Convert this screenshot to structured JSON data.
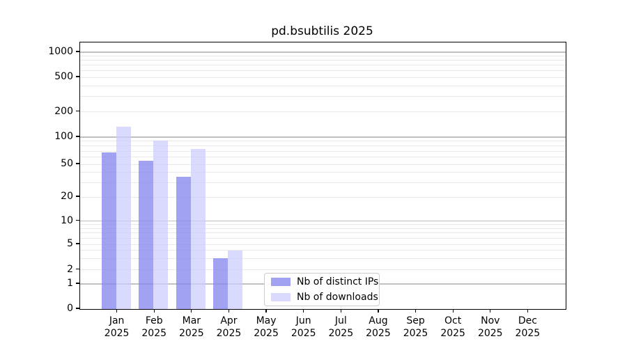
{
  "figure": {
    "title": "pd.bsubtilis 2025"
  },
  "chart_data": {
    "type": "bar",
    "title": "pd.bsubtilis 2025",
    "categories": [
      "Jan 2025",
      "Feb 2025",
      "Mar 2025",
      "Apr 2025",
      "May 2025",
      "Jun 2025",
      "Jul 2025",
      "Aug 2025",
      "Sep 2025",
      "Oct 2025",
      "Nov 2025",
      "Dec 2025"
    ],
    "month_labels": [
      "Jan",
      "Feb",
      "Mar",
      "Apr",
      "May",
      "Jun",
      "Jul",
      "Aug",
      "Sep",
      "Oct",
      "Nov",
      "Dec"
    ],
    "year_label": "2025",
    "series": [
      {
        "name": "Nb of distinct IPs",
        "color": "#8888ee",
        "fill": "rgba(136,136,238,0.78)",
        "values": [
          68,
          55,
          35,
          3,
          0,
          0,
          0,
          0,
          0,
          0,
          0,
          0
        ]
      },
      {
        "name": "Nb of downloads",
        "color": "#ccccff",
        "fill": "rgba(204,204,255,0.72)",
        "values": [
          133,
          92,
          74,
          4,
          0,
          0,
          0,
          0,
          0,
          0,
          0,
          0
        ]
      }
    ],
    "xlabel": "",
    "ylabel": "",
    "yscale": "log above 1, linear 0-1 (symlog-like)",
    "y_ticks": [
      0,
      1,
      2,
      5,
      10,
      20,
      50,
      100,
      200,
      500,
      1000
    ],
    "ylim": [
      0,
      1300
    ],
    "grid": "horizontal major (gray) and minor (light gray)",
    "legend_position": "lower center inside axes"
  }
}
